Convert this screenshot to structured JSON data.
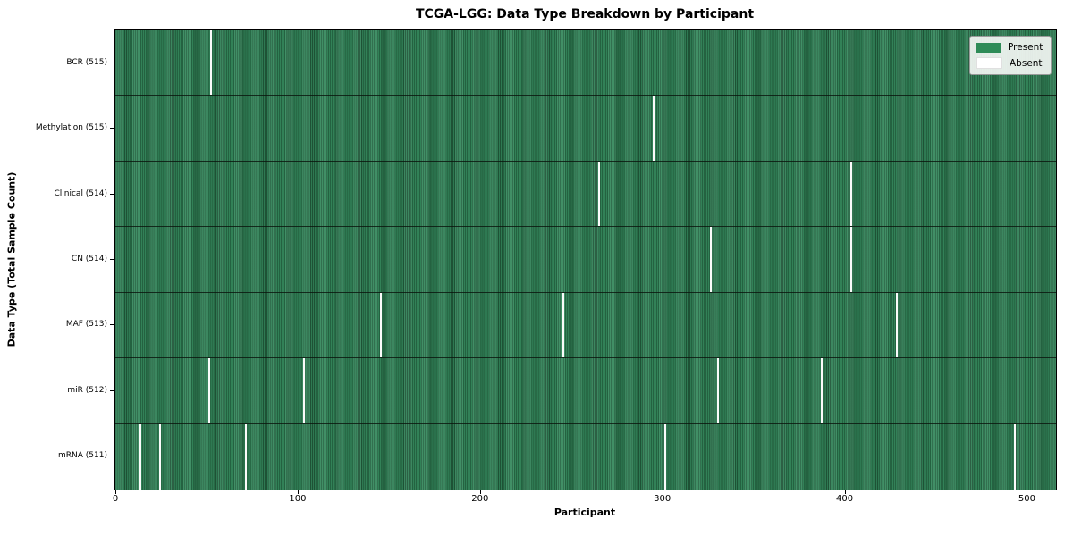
{
  "title": "TCGA-LGG: Data Type Breakdown by Participant",
  "xlabel": "Participant",
  "ylabel": "Data Type (Total Sample Count)",
  "legend": {
    "present_label": "Present",
    "absent_label": "Absent",
    "position": "upper right"
  },
  "colors": {
    "present": "#2e8b57",
    "present_dark_edge": "#1f5638",
    "absent": "#ffffff",
    "row_separator": "#0a140c",
    "plot_border": "#000000",
    "legend_background": "#f3f6f3",
    "legend_border": "#9a9a9a"
  },
  "chart_data": {
    "type": "heatmap",
    "title": "TCGA-LGG: Data Type Breakdown by Participant",
    "xlabel": "Participant",
    "ylabel": "Data Type (Total Sample Count)",
    "total_participants": 516,
    "x_ticks": [
      0,
      100,
      200,
      300,
      400,
      500
    ],
    "x_range": [
      0,
      516
    ],
    "grid": false,
    "legend_entries": [
      {
        "label": "Present",
        "color": "#2e8b57"
      },
      {
        "label": "Absent",
        "color": "#ffffff"
      }
    ],
    "legend_position": "upper right",
    "rows": [
      {
        "label": "BCR (515)",
        "data_type": "BCR",
        "present_count": 515,
        "absent_count": 1,
        "absent_participants": [
          52
        ]
      },
      {
        "label": "Methylation (515)",
        "data_type": "Methylation",
        "present_count": 515,
        "absent_count": 1,
        "absent_participants": [
          295
        ]
      },
      {
        "label": "Clinical (514)",
        "data_type": "Clinical",
        "present_count": 514,
        "absent_count": 2,
        "absent_participants": [
          265,
          403
        ]
      },
      {
        "label": "CN (514)",
        "data_type": "CN",
        "present_count": 514,
        "absent_count": 2,
        "absent_participants": [
          326,
          403
        ]
      },
      {
        "label": "MAF (513)",
        "data_type": "MAF",
        "present_count": 513,
        "absent_count": 3,
        "absent_participants": [
          145,
          245,
          428
        ]
      },
      {
        "label": "miR (512)",
        "data_type": "miR",
        "present_count": 512,
        "absent_count": 4,
        "absent_participants": [
          51,
          103,
          330,
          387
        ]
      },
      {
        "label": "mRNA (511)",
        "data_type": "mRNA",
        "present_count": 511,
        "absent_count": 5,
        "absent_participants": [
          13,
          24,
          71,
          301,
          493
        ]
      }
    ]
  }
}
